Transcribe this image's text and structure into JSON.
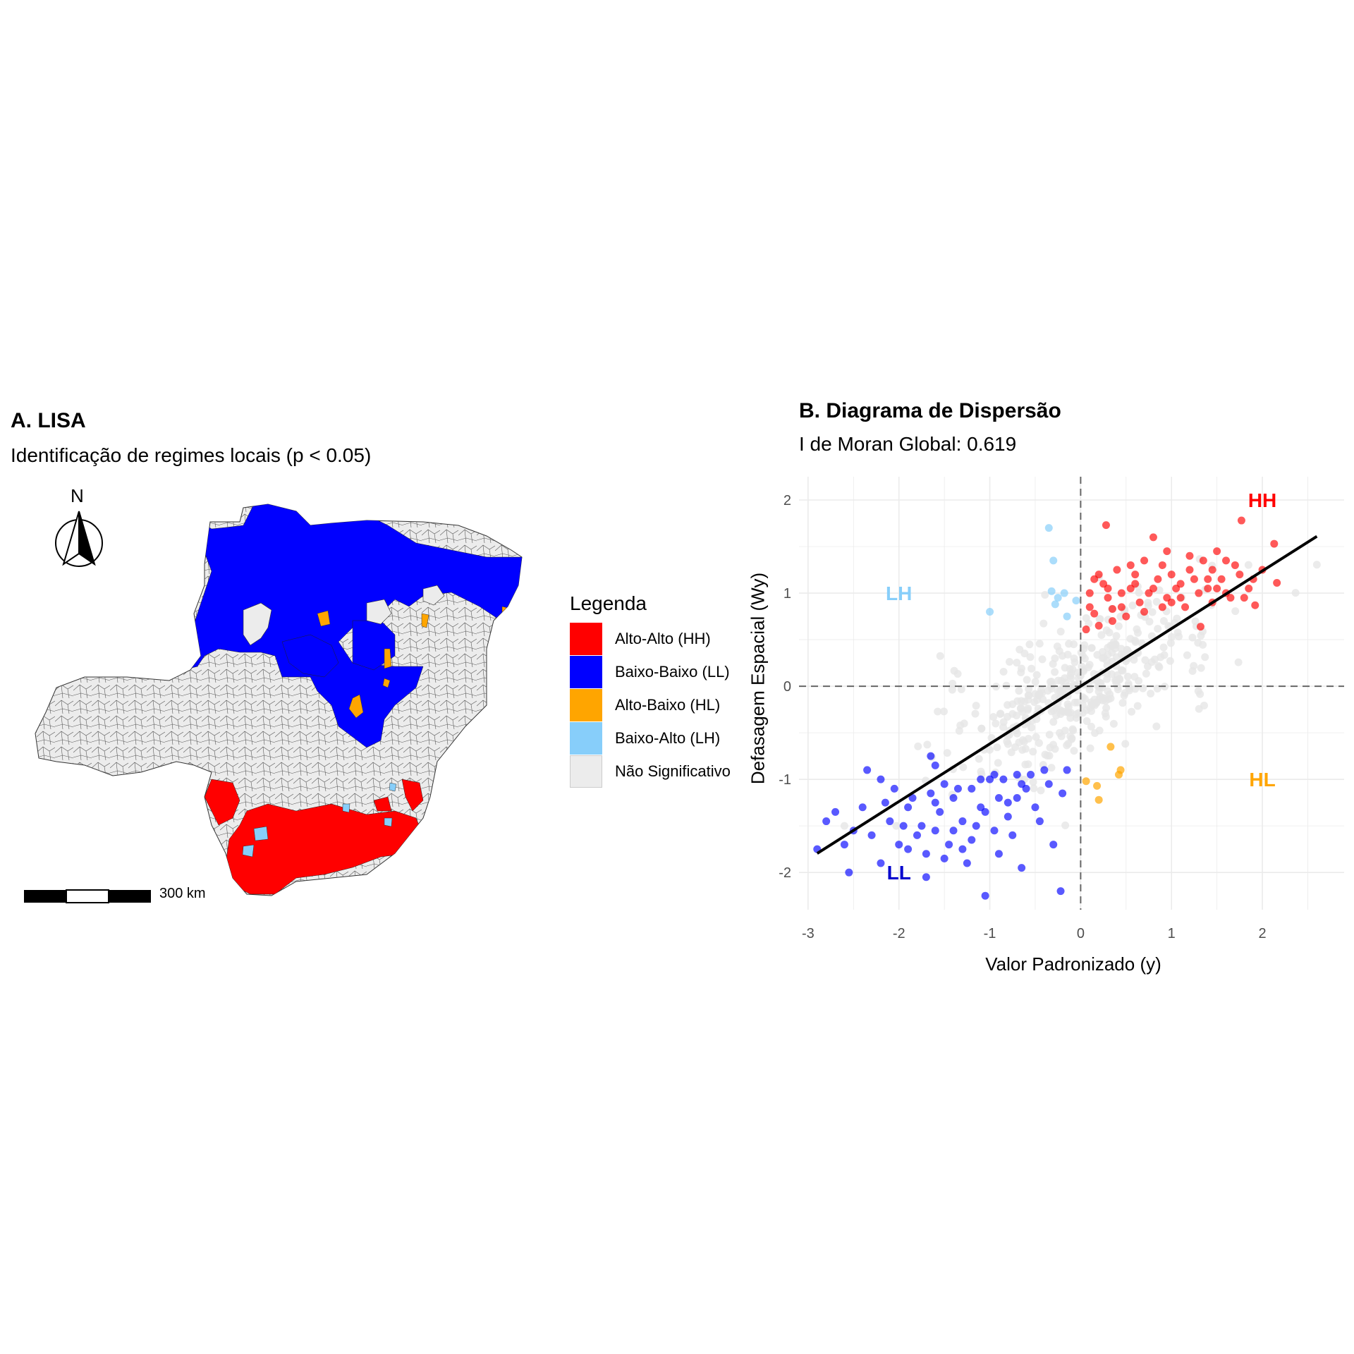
{
  "panel_a": {
    "title": "A. LISA",
    "subtitle": "Identificação de regimes locais (p < 0.05)",
    "north_label": "N",
    "scale_label": "300 km",
    "legend": {
      "title": "Legenda",
      "items": [
        {
          "label": "Alto-Alto (HH)",
          "color": "#ff0000"
        },
        {
          "label": "Baixo-Baixo (LL)",
          "color": "#0000ff"
        },
        {
          "label": "Alto-Baixo (HL)",
          "color": "#ffa500"
        },
        {
          "label": "Baixo-Alto (LH)",
          "color": "#87cefa"
        },
        {
          "label": "Não Significativo",
          "color": "#ececec"
        }
      ]
    }
  },
  "chart_data": {
    "type": "scatter",
    "title": "B. Diagrama de Dispersão",
    "subtitle": "I de Moran Global: 0.619",
    "xlabel": "Valor Padronizado (y)",
    "ylabel": "Defasagem Espacial (Wy)",
    "xlim": [
      -3.1,
      2.9
    ],
    "ylim": [
      -2.4,
      2.25
    ],
    "xticks": [
      -3,
      -2,
      -1,
      0,
      1,
      2
    ],
    "yticks": [
      -2,
      -1,
      0,
      1,
      2
    ],
    "grid": true,
    "reference_lines": {
      "x": 0,
      "y": 0,
      "style": "dashed"
    },
    "regression_line": {
      "slope": 0.619,
      "intercept": 0,
      "x_range": [
        -2.9,
        2.6
      ]
    },
    "quadrant_labels": [
      {
        "text": "HH",
        "x": 2.0,
        "y": 2.0,
        "color": "#ff0000"
      },
      {
        "text": "LH",
        "x": -2.0,
        "y": 1.0,
        "color": "#87cefa"
      },
      {
        "text": "LL",
        "x": -2.0,
        "y": -2.0,
        "color": "#0000cd"
      },
      {
        "text": "HL",
        "x": 2.0,
        "y": -1.0,
        "color": "#ffa500"
      }
    ],
    "series": [
      {
        "name": "HH",
        "color": "#ff0000",
        "opacity": 0.65,
        "points": [
          [
            0.28,
            1.73
          ],
          [
            0.8,
            1.6
          ],
          [
            1.77,
            1.78
          ],
          [
            2.13,
            1.53
          ],
          [
            2.16,
            1.11
          ],
          [
            1.92,
            0.87
          ],
          [
            1.32,
            0.64
          ],
          [
            0.06,
            0.61
          ],
          [
            0.35,
            0.83
          ],
          [
            0.55,
            1.3
          ],
          [
            1.2,
            1.4
          ],
          [
            1.5,
            1.45
          ],
          [
            0.1,
            1.0
          ],
          [
            0.6,
            1.1
          ],
          [
            1.0,
            1.2
          ],
          [
            1.7,
            1.3
          ],
          [
            0.3,
            0.95
          ],
          [
            0.9,
            0.85
          ],
          [
            1.4,
            1.05
          ],
          [
            1.1,
            0.95
          ],
          [
            0.2,
            1.2
          ],
          [
            0.45,
            1.0
          ],
          [
            0.7,
            1.35
          ],
          [
            1.25,
            1.15
          ],
          [
            1.6,
            1.0
          ],
          [
            1.85,
            1.05
          ],
          [
            0.15,
            0.78
          ],
          [
            0.5,
            0.75
          ],
          [
            0.95,
            1.45
          ],
          [
            1.45,
            1.25
          ],
          [
            0.65,
            0.9
          ],
          [
            1.05,
            1.05
          ],
          [
            1.35,
            1.35
          ],
          [
            0.4,
            1.25
          ],
          [
            0.85,
            1.15
          ],
          [
            1.55,
            1.15
          ],
          [
            1.75,
            1.2
          ],
          [
            2.0,
            1.25
          ],
          [
            0.25,
            1.1
          ],
          [
            1.15,
            0.85
          ],
          [
            0.75,
            1.0
          ],
          [
            1.65,
            0.95
          ],
          [
            0.35,
            0.7
          ],
          [
            0.55,
            1.05
          ],
          [
            1.3,
            1.0
          ],
          [
            0.1,
            0.85
          ],
          [
            0.9,
            1.3
          ],
          [
            1.45,
            0.9
          ],
          [
            1.8,
            0.95
          ],
          [
            0.2,
            0.65
          ],
          [
            0.6,
            1.2
          ],
          [
            1.0,
            0.9
          ],
          [
            1.2,
            1.25
          ],
          [
            1.6,
            1.35
          ],
          [
            0.45,
            0.85
          ],
          [
            0.8,
            1.05
          ],
          [
            1.4,
            1.15
          ],
          [
            1.9,
            1.15
          ],
          [
            0.3,
            1.05
          ],
          [
            0.7,
            0.8
          ],
          [
            1.1,
            1.1
          ],
          [
            1.5,
            1.05
          ],
          [
            0.15,
            1.15
          ],
          [
            0.95,
            0.95
          ]
        ]
      },
      {
        "name": "LL",
        "color": "#0000ff",
        "opacity": 0.65,
        "points": [
          [
            -2.9,
            -1.75
          ],
          [
            -2.55,
            -2.0
          ],
          [
            -1.5,
            -1.85
          ],
          [
            -1.05,
            -2.25
          ],
          [
            -0.65,
            -1.95
          ],
          [
            -0.3,
            -1.7
          ],
          [
            -0.22,
            -2.2
          ],
          [
            -0.15,
            -0.9
          ],
          [
            -0.2,
            -1.15
          ],
          [
            -2.35,
            -0.9
          ],
          [
            -2.2,
            -1.0
          ],
          [
            -1.65,
            -0.75
          ],
          [
            -1.6,
            -0.85
          ],
          [
            -2.7,
            -1.35
          ],
          [
            -2.5,
            -1.55
          ],
          [
            -2.3,
            -1.6
          ],
          [
            -2.1,
            -1.45
          ],
          [
            -1.9,
            -1.3
          ],
          [
            -1.8,
            -1.6
          ],
          [
            -1.7,
            -1.8
          ],
          [
            -1.6,
            -1.55
          ],
          [
            -1.4,
            -1.2
          ],
          [
            -1.3,
            -1.45
          ],
          [
            -1.2,
            -1.65
          ],
          [
            -1.1,
            -1.3
          ],
          [
            -1.0,
            -1.0
          ],
          [
            -0.9,
            -1.2
          ],
          [
            -0.8,
            -1.4
          ],
          [
            -0.7,
            -0.95
          ],
          [
            -0.6,
            -1.1
          ],
          [
            -0.5,
            -1.3
          ],
          [
            -0.4,
            -0.9
          ],
          [
            -2.0,
            -1.7
          ],
          [
            -1.85,
            -1.2
          ],
          [
            -1.75,
            -1.5
          ],
          [
            -1.55,
            -1.35
          ],
          [
            -1.45,
            -1.7
          ],
          [
            -1.35,
            -1.1
          ],
          [
            -1.25,
            -1.9
          ],
          [
            -1.15,
            -1.5
          ],
          [
            -0.95,
            -1.55
          ],
          [
            -0.85,
            -1.0
          ],
          [
            -0.75,
            -1.6
          ],
          [
            -0.55,
            -0.95
          ],
          [
            -0.45,
            -1.45
          ],
          [
            -2.6,
            -1.7
          ],
          [
            -2.4,
            -1.3
          ],
          [
            -2.2,
            -1.9
          ],
          [
            -2.05,
            -1.1
          ],
          [
            -1.95,
            -1.5
          ],
          [
            -1.65,
            -1.15
          ],
          [
            -1.5,
            -1.05
          ],
          [
            -1.4,
            -1.55
          ],
          [
            -1.2,
            -1.1
          ],
          [
            -1.05,
            -1.35
          ],
          [
            -0.95,
            -0.95
          ],
          [
            -0.8,
            -1.25
          ],
          [
            -0.65,
            -1.05
          ],
          [
            -0.35,
            -1.05
          ],
          [
            -2.8,
            -1.45
          ],
          [
            -1.7,
            -2.05
          ],
          [
            -1.3,
            -1.75
          ],
          [
            -0.9,
            -1.8
          ],
          [
            -2.15,
            -1.25
          ],
          [
            -1.9,
            -1.75
          ],
          [
            -1.6,
            -1.25
          ],
          [
            -1.1,
            -1.0
          ],
          [
            -0.7,
            -1.2
          ]
        ]
      },
      {
        "name": "HL",
        "color": "#ffa500",
        "opacity": 0.7,
        "points": [
          [
            0.33,
            -0.65
          ],
          [
            0.06,
            -1.02
          ],
          [
            0.18,
            -1.07
          ],
          [
            0.2,
            -1.22
          ],
          [
            0.44,
            -0.9
          ],
          [
            0.42,
            -0.95
          ]
        ]
      },
      {
        "name": "LH",
        "color": "#87cefa",
        "opacity": 0.7,
        "points": [
          [
            -0.35,
            1.7
          ],
          [
            -0.3,
            1.35
          ],
          [
            -1.0,
            0.8
          ],
          [
            -0.32,
            1.02
          ],
          [
            -0.25,
            0.95
          ],
          [
            -0.18,
            1.0
          ],
          [
            -0.28,
            0.88
          ],
          [
            -0.15,
            0.75
          ],
          [
            -0.05,
            0.92
          ]
        ]
      },
      {
        "name": "NS",
        "color": "#e6e6e6",
        "opacity": 0.8,
        "count": 420
      }
    ]
  }
}
